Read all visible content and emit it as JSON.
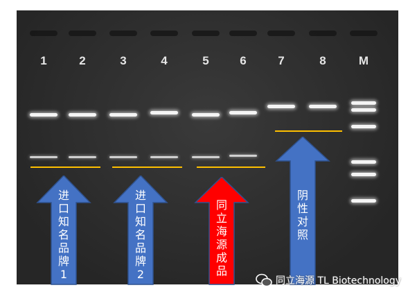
{
  "lanes": [
    "1",
    "2",
    "3",
    "4",
    "5",
    "6",
    "7",
    "8",
    "M"
  ],
  "labels": {
    "brand1": [
      "进",
      "口",
      "知",
      "名",
      "品",
      "牌",
      "1"
    ],
    "brand2": [
      "进",
      "口",
      "知",
      "名",
      "品",
      "牌",
      "2"
    ],
    "product": [
      "同",
      "立",
      "海",
      "源",
      "成",
      "品"
    ],
    "negative": [
      "阴",
      "性",
      "对",
      "照"
    ]
  },
  "colors": {
    "blue_arrow": "#4472c4",
    "red_arrow": "#ff0000",
    "underline": "#ffc000"
  },
  "watermark": {
    "icon": "wechat-icon",
    "text": "同立海源 TL Biotechnology"
  }
}
